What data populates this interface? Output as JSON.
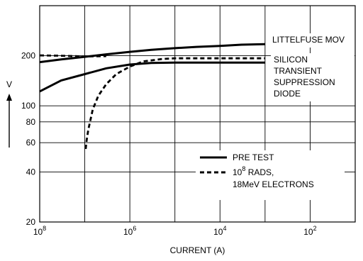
{
  "chart_data": {
    "type": "line",
    "xlabel": "CURRENT (A)",
    "ylabel": "V",
    "x_scale": "log",
    "y_scale": "log",
    "x_ticks": [
      {
        "value": 1e-08,
        "base": "10",
        "exp": "8"
      },
      {
        "value": 1e-06,
        "base": "10",
        "exp": "6"
      },
      {
        "value": 0.0001,
        "base": "10",
        "exp": "4"
      },
      {
        "value": 0.01,
        "base": "10",
        "exp": "2"
      }
    ],
    "y_ticks": [
      {
        "value": 20,
        "label": "20"
      },
      {
        "value": 40,
        "label": "40"
      },
      {
        "value": 60,
        "label": "60"
      },
      {
        "value": 80,
        "label": "80"
      },
      {
        "value": 100,
        "label": "100"
      },
      {
        "value": 200,
        "label": "200"
      }
    ],
    "xlim": [
      1e-08,
      0.1
    ],
    "ylim": [
      20,
      400
    ],
    "grid": true,
    "annotations": [
      {
        "id": "mov",
        "lines": [
          "LITTELFUSE MOV"
        ]
      },
      {
        "id": "diode",
        "lines": [
          "SILICON",
          "TRANSIENT",
          "SUPPRESSION",
          "DIODE"
        ]
      }
    ],
    "legend": {
      "placement": "bottom-right",
      "entries": [
        {
          "style": "solid",
          "lines": [
            {
              "text": "PRE TEST"
            }
          ]
        },
        {
          "style": "dashed",
          "lines": [
            {
              "base": "10",
              "sup": "8",
              "after": " RADS,"
            },
            {
              "text": "18MeV ELECTRONS"
            }
          ]
        }
      ]
    },
    "series": [
      {
        "curve": "mov",
        "style": "solid",
        "x": [
          1e-08,
          3e-08,
          1e-07,
          3e-07,
          1e-06,
          3e-06,
          1e-05,
          3e-05,
          0.0001,
          0.0003,
          0.001
        ],
        "y": [
          183,
          190,
          197,
          204,
          211,
          217,
          222,
          226,
          229,
          233,
          235
        ]
      },
      {
        "curve": "mov",
        "style": "dashed",
        "x": [
          1e-08,
          3e-08,
          1e-07,
          3e-07
        ],
        "y": [
          201,
          200,
          198,
          199
        ]
      },
      {
        "curve": "diode",
        "style": "solid",
        "x": [
          1e-08,
          3e-08,
          1e-07,
          3e-07,
          1e-06,
          3e-06,
          1e-05,
          3e-05,
          0.0001,
          0.0003,
          0.001
        ],
        "y": [
          122,
          142,
          155,
          168,
          177,
          181,
          182,
          182,
          182,
          182,
          182
        ]
      },
      {
        "curve": "diode",
        "style": "dashed",
        "x": [
          1.05e-07,
          1.1e-07,
          1.2e-07,
          1.5e-07,
          2e-07,
          3e-07,
          5e-07,
          1e-06,
          2e-06,
          5e-06,
          1e-05,
          0.0001,
          0.001
        ],
        "y": [
          55,
          62,
          72,
          95,
          115,
          135,
          155,
          172,
          185,
          191,
          193,
          193,
          193
        ]
      }
    ]
  }
}
